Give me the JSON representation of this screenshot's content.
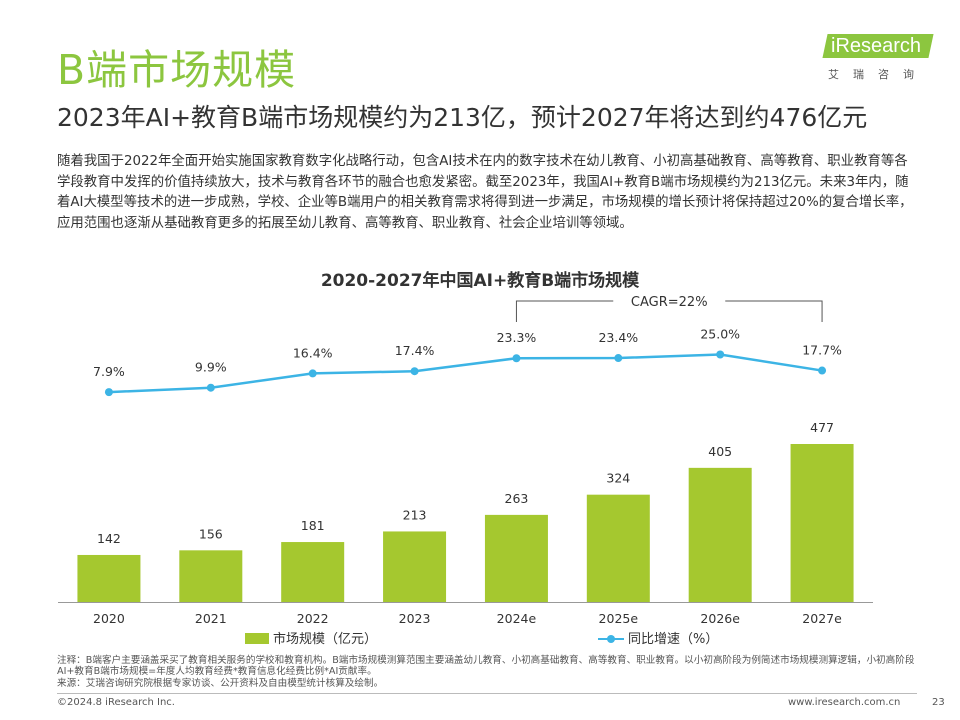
{
  "header": {
    "title": "B端市场规模",
    "subtitle": "2023年AI+教育B端市场规模约为213亿，预计2027年将达到约476亿元"
  },
  "logo": {
    "brand": "iResearch",
    "sub": "艾瑞咨询",
    "brand_color": "#8cc63f"
  },
  "body": {
    "paragraph": "随着我国于2022年全面开始实施国家教育数字化战略行动，包含AI技术在内的数字技术在幼儿教育、小初高基础教育、高等教育、职业教育等各学段教育中发挥的价值持续放大，技术与教育各环节的融合也愈发紧密。截至2023年，我国AI+教育B端市场规模约为213亿元。未来3年内，随着AI大模型等技术的进一步成熟，学校、企业等B端用户的相关教育需求将得到进一步满足，市场规模的增长预计将保持超过20%的复合增长率，应用范围也逐渐从基础教育更多的拓展至幼儿教育、高等教育、职业教育、社会企业培训等领域。"
  },
  "chart_data": {
    "type": "bar",
    "title": "2020-2027年中国AI+教育B端市场规模",
    "categories": [
      "2020",
      "2021",
      "2022",
      "2023",
      "2024e",
      "2025e",
      "2026e",
      "2027e"
    ],
    "series": [
      {
        "name": "市场规模（亿元）",
        "type": "bar",
        "values": [
          142,
          156,
          181,
          213,
          263,
          324,
          405,
          477
        ],
        "color": "#a5c82f"
      },
      {
        "name": "同比增速（%）",
        "type": "line",
        "values": [
          7.9,
          9.9,
          16.4,
          17.4,
          23.3,
          23.4,
          25.0,
          17.7
        ],
        "labels": [
          "7.9%",
          "9.9%",
          "16.4%",
          "17.4%",
          "23.3%",
          "23.4%",
          "25.0%",
          "17.7%"
        ],
        "color": "#3cb4e5"
      }
    ],
    "annotation": {
      "text": "CAGR=22%",
      "from": "2024e",
      "to": "2027e"
    },
    "grid": false,
    "legend_position": "bottom"
  },
  "notes": {
    "note": "注释：B端客户主要涵盖采买了教育相关服务的学校和教育机构。B端市场规模测算范围主要涵盖幼儿教育、小初高基础教育、高等教育、职业教育。以小初高阶段为例简述市场规模测算逻辑，小初高阶段AI+教育B端市场规模=年度人均教育经费*教育信息化经费比例*AI贡献率。",
    "source": "来源：艾瑞咨询研究院根据专家访谈、公开资料及自由模型统计核算及绘制。"
  },
  "footer": {
    "copyright": "©2024.8 iResearch Inc.",
    "url": "www.iresearch.com.cn",
    "page": "23"
  }
}
